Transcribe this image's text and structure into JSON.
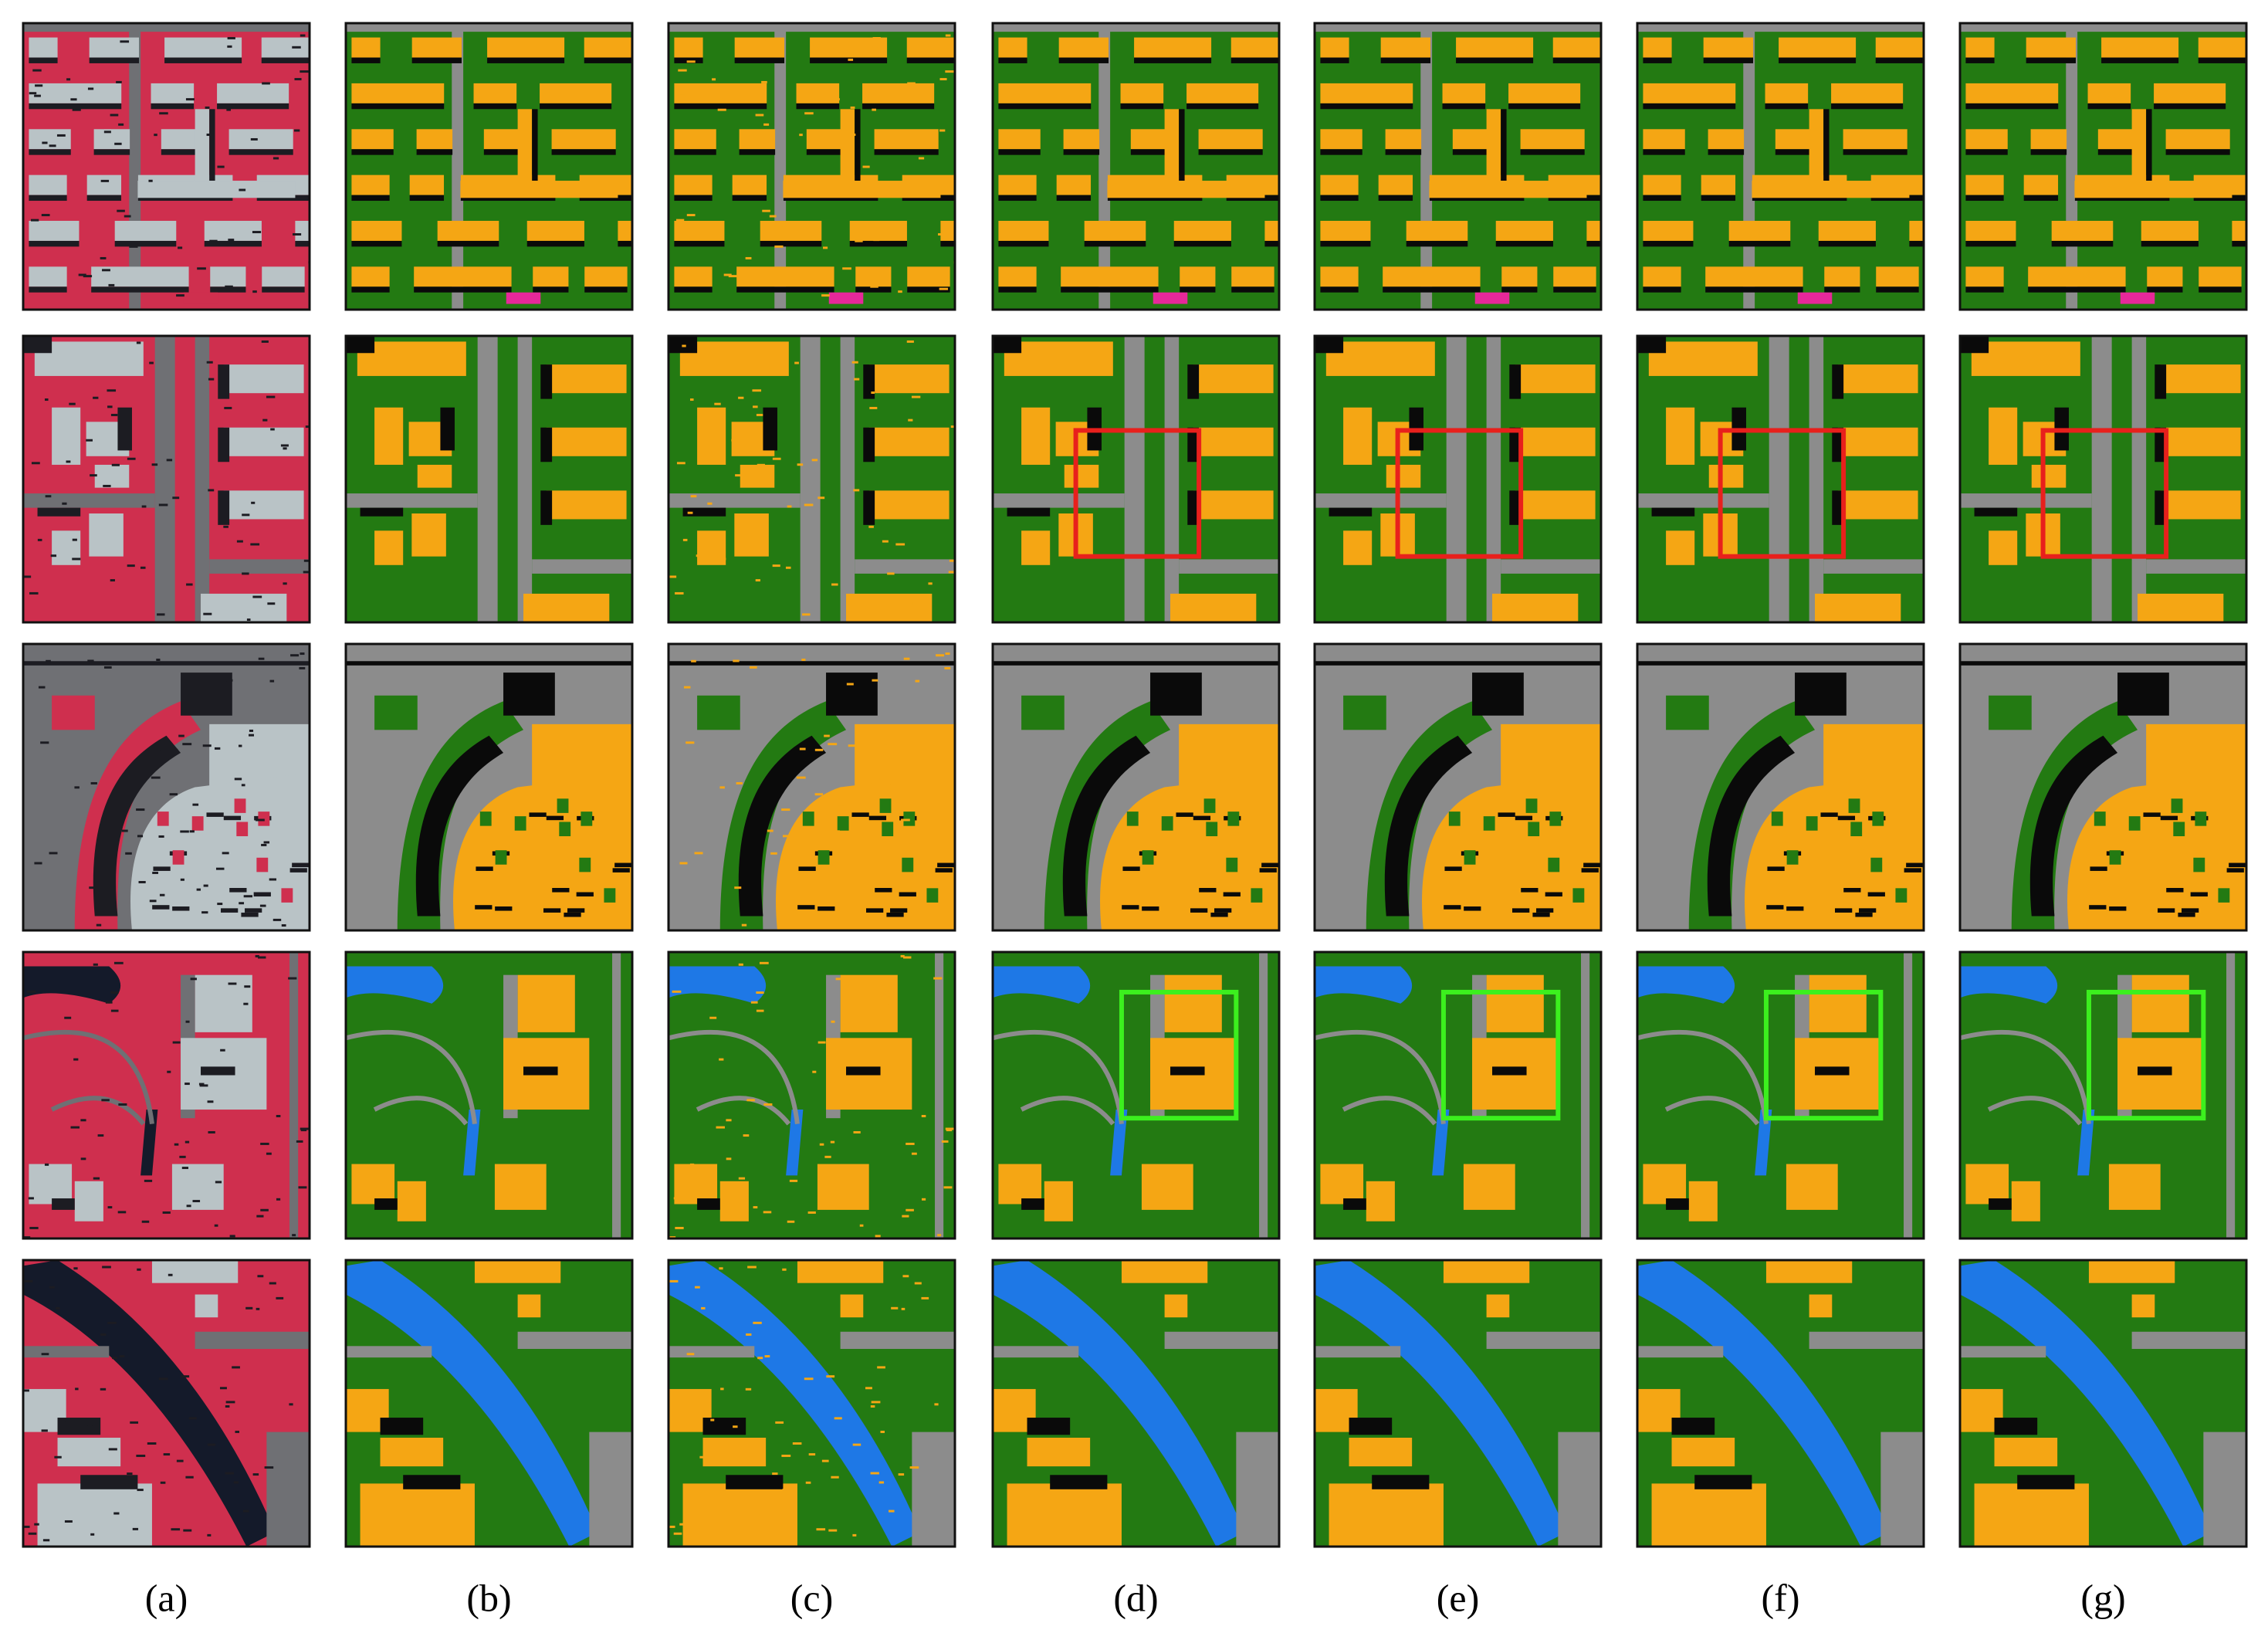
{
  "columns": [
    {
      "label": "(a)"
    },
    {
      "label": "(b)"
    },
    {
      "label": "(c)"
    },
    {
      "label": "(d)"
    },
    {
      "label": "(e)"
    },
    {
      "label": "(f)"
    },
    {
      "label": "(g)"
    }
  ]
}
